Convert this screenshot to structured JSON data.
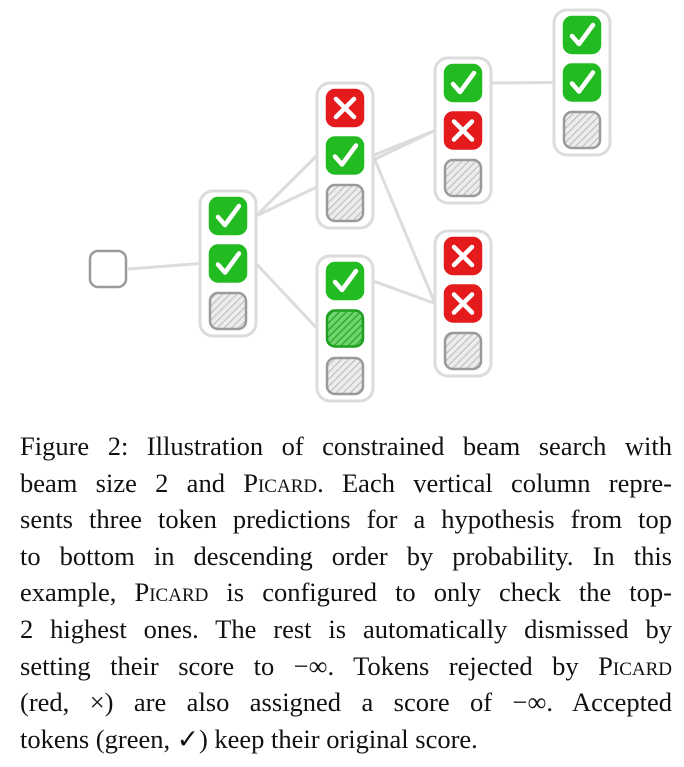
{
  "colors": {
    "accepted": "#22bb22",
    "rejected": "#e41a1c",
    "dismissed": "#d7d7d7",
    "outline": "#9a9a9a",
    "connector": "#dcdcdc"
  },
  "diagram": {
    "root": {
      "state": "empty"
    },
    "columns": [
      {
        "id": "c1",
        "tokens": [
          "accepted",
          "accepted",
          "dismissed"
        ]
      },
      {
        "id": "c2",
        "tokens": [
          "rejected",
          "accepted",
          "dismissed"
        ]
      },
      {
        "id": "c3",
        "tokens": [
          "accepted",
          "accepted-hatched",
          "dismissed"
        ]
      },
      {
        "id": "c4",
        "tokens": [
          "accepted",
          "rejected",
          "dismissed"
        ]
      },
      {
        "id": "c5",
        "tokens": [
          "rejected",
          "rejected",
          "dismissed"
        ]
      },
      {
        "id": "c6",
        "tokens": [
          "accepted",
          "accepted",
          "dismissed"
        ]
      }
    ],
    "edges": [
      {
        "from": "root",
        "from_slot": 0,
        "to": "c1"
      },
      {
        "from": "c1",
        "from_slot": 0,
        "to": "c2"
      },
      {
        "from": "c1",
        "from_slot": 1,
        "to": "c3"
      },
      {
        "from": "c1",
        "from_slot": 0,
        "to": "c4"
      },
      {
        "from": "c2",
        "from_slot": 1,
        "to": "c4"
      },
      {
        "from": "c2",
        "from_slot": 1,
        "to": "c5"
      },
      {
        "from": "c3",
        "from_slot": 0,
        "to": "c5"
      },
      {
        "from": "c4",
        "from_slot": 0,
        "to": "c6"
      }
    ]
  },
  "caption": {
    "lines": [
      [
        "Figure 2: Illustration of constrained beam search with"
      ],
      [
        "beam size 2 and ",
        {
          "sc": "Picard"
        },
        ". Each vertical column repre-"
      ],
      [
        "sents three token predictions for a hypothesis from top"
      ],
      [
        "to bottom in descending order by probability.  In this"
      ],
      [
        "example, ",
        {
          "sc": "Picard"
        },
        " is configured to only check the top-"
      ],
      [
        "2 highest ones. The rest is automatically dismissed by"
      ],
      [
        "setting their score to −∞. Tokens rejected by ",
        {
          "sc": "Picard"
        }
      ],
      [
        "(red, ×) are also assigned a score of −∞.  Accepted"
      ],
      [
        "tokens (green, ✓) keep their original score."
      ]
    ]
  }
}
